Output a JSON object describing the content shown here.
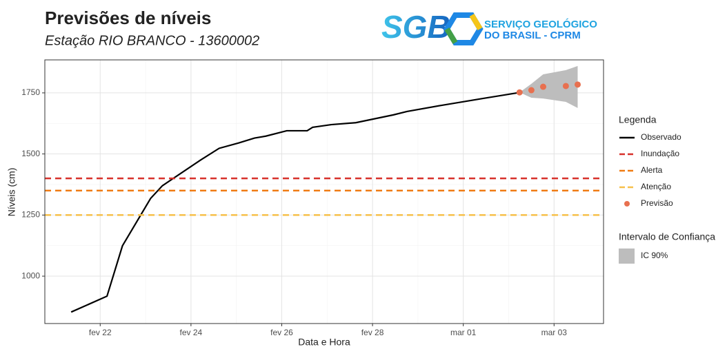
{
  "chart_data": {
    "type": "line",
    "title": "Previsões de níveis",
    "subtitle": "Estação RIO BRANCO - 13600002",
    "xlabel": "Data e Hora",
    "ylabel": "Níveis (cm)",
    "xlim": [
      20.78,
      33.09
    ],
    "ylim": [
      806,
      1885
    ],
    "xticks": [
      {
        "value": 22,
        "label": "fev 22"
      },
      {
        "value": 24,
        "label": "fev 24"
      },
      {
        "value": 26,
        "label": "fev 26"
      },
      {
        "value": 28,
        "label": "fev 28"
      },
      {
        "value": 30,
        "label": "mar 01"
      },
      {
        "value": 32,
        "label": "mar 03"
      }
    ],
    "yticks": [
      1000,
      1250,
      1500,
      1750
    ],
    "grid": true,
    "minor_grid": true,
    "legend_title": "Legenda",
    "series": [
      {
        "name": "Observado",
        "type": "line",
        "color": "#000000",
        "x": [
          21.36,
          22.15,
          22.49,
          23.11,
          23.37,
          24.21,
          24.62,
          25.05,
          25.4,
          25.65,
          26.11,
          26.56,
          26.68,
          27.09,
          27.63,
          28.46,
          28.76,
          29.52,
          30.43,
          31.19
        ],
        "values": [
          853,
          918,
          1124,
          1318,
          1370,
          1475,
          1523,
          1545,
          1565,
          1573,
          1595,
          1595,
          1609,
          1620,
          1628,
          1660,
          1674,
          1699,
          1727,
          1750
        ]
      },
      {
        "name": "Inundação",
        "type": "hline",
        "color": "#d7302a",
        "values": [
          1400
        ]
      },
      {
        "name": "Alerta",
        "type": "hline",
        "color": "#f07b12",
        "values": [
          1350
        ]
      },
      {
        "name": "Atenção",
        "type": "hline",
        "color": "#f7c04a",
        "values": [
          1250
        ]
      },
      {
        "name": "Previsão",
        "type": "scatter",
        "color": "#e8704f",
        "x": [
          31.24,
          31.5,
          31.76,
          32.26,
          32.52
        ],
        "values": [
          1752,
          1761,
          1775,
          1778,
          1784
        ]
      }
    ],
    "band": {
      "title": "Intervalo de Confiança",
      "name": "IC 90%",
      "color": "#bdbdbd",
      "x": [
        31.24,
        31.5,
        31.76,
        32.26,
        32.52
      ],
      "lower": [
        1752,
        1730,
        1727,
        1713,
        1688
      ],
      "upper": [
        1752,
        1787,
        1826,
        1843,
        1860
      ]
    }
  },
  "logo": {
    "mark": "SGB",
    "line1": "SERVIÇO GEOLÓGICO",
    "line2": "DO BRASIL - CPRM"
  }
}
